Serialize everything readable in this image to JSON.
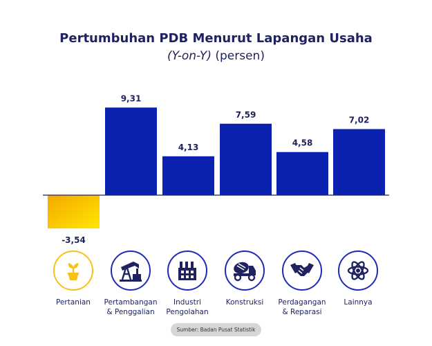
{
  "chart_data": {
    "type": "bar",
    "title": "Pertumbuhan PDB Menurut Lapangan Usaha",
    "subtitle_italic": "(Y-on-Y)",
    "subtitle_rest": " (persen)",
    "categories": [
      "Pertanian",
      "Pertambangan\n& Penggalian",
      "Industri\nPengolahan",
      "Konstruksi",
      "Perdagangan\n& Reparasi",
      "Lainnya"
    ],
    "values": [
      -3.54,
      9.31,
      4.13,
      7.59,
      4.58,
      7.02
    ],
    "value_labels": [
      "-3,54",
      "9,31",
      "4,13",
      "7,59",
      "4,58",
      "7,02"
    ],
    "colors": {
      "positive": "#0b22b0",
      "negative_top": "#f5a800",
      "negative_bottom": "#ffe600",
      "axis": "#1f2260",
      "text": "#1f2260",
      "icon_border": "#1f2bb8",
      "icon_highlight": "#f6c21a"
    },
    "icons": [
      "plant-sprout-icon",
      "oil-pump-icon",
      "factory-icon",
      "cement-mixer-truck-icon",
      "handshake-icon",
      "atom-icon"
    ],
    "source": "Sumber: Badan Pusat Statistik"
  }
}
